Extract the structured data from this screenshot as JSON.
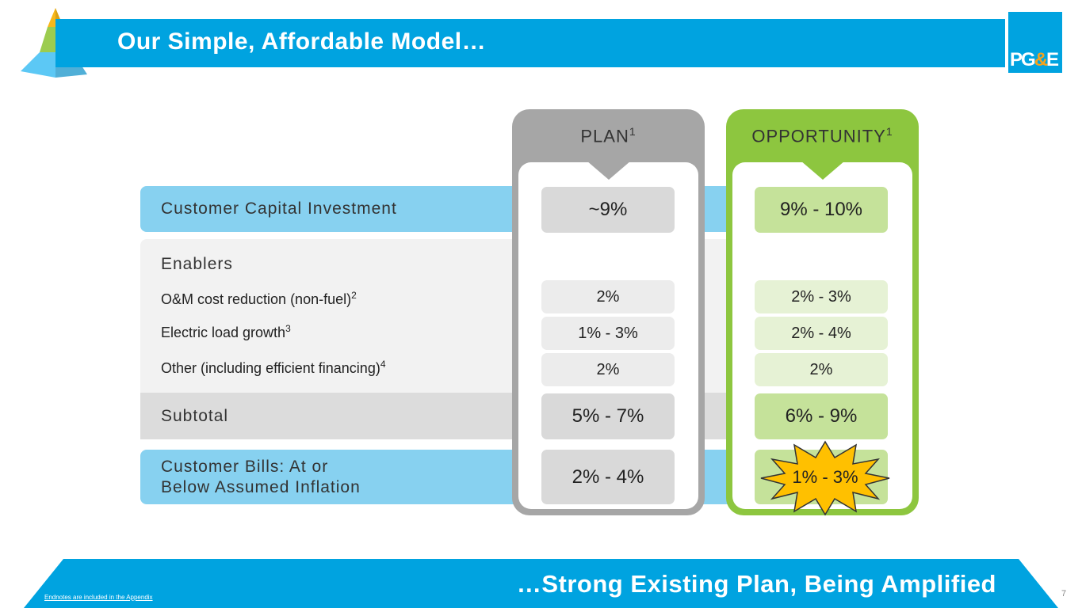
{
  "header": {
    "title": "Our Simple, Affordable Model…",
    "logo": "PG&E"
  },
  "columns": {
    "plan": "PLAN",
    "plan_sup": "1",
    "opportunity": "OPPORTUNITY",
    "opportunity_sup": "1"
  },
  "rows": {
    "capital": {
      "label": "Customer Capital Investment",
      "plan": "~9%",
      "opportunity": "9% - 10%"
    },
    "enablers": {
      "label": "Enablers"
    },
    "om": {
      "label": "O&M cost reduction (non-fuel)",
      "sup": "2",
      "plan": "2%",
      "opportunity": "2% - 3%"
    },
    "load": {
      "label": "Electric load growth",
      "sup": "3",
      "plan": "1% - 3%",
      "opportunity": "2% - 4%"
    },
    "other": {
      "label": "Other (including efficient financing)",
      "sup": "4",
      "plan": "2%",
      "opportunity": "2%"
    },
    "subtotal": {
      "label": "Subtotal",
      "plan": "5% - 7%",
      "opportunity": "6% - 9%"
    },
    "bills": {
      "label_line1": "Customer Bills: At or",
      "label_line2": "Below Assumed Inflation",
      "plan": "2% - 4%",
      "opportunity": "1% - 3%"
    }
  },
  "footer": {
    "tagline": "…Strong Existing Plan, Being Amplified",
    "endnotes": "Endnotes are included in the Appendix",
    "page_number": "7"
  },
  "colors": {
    "brand_blue": "#00a3e0",
    "light_blue": "#87d1f0",
    "plan_gray": "#a6a6a6",
    "opportunity_green": "#8dc63f",
    "starburst": "#ffc000"
  }
}
